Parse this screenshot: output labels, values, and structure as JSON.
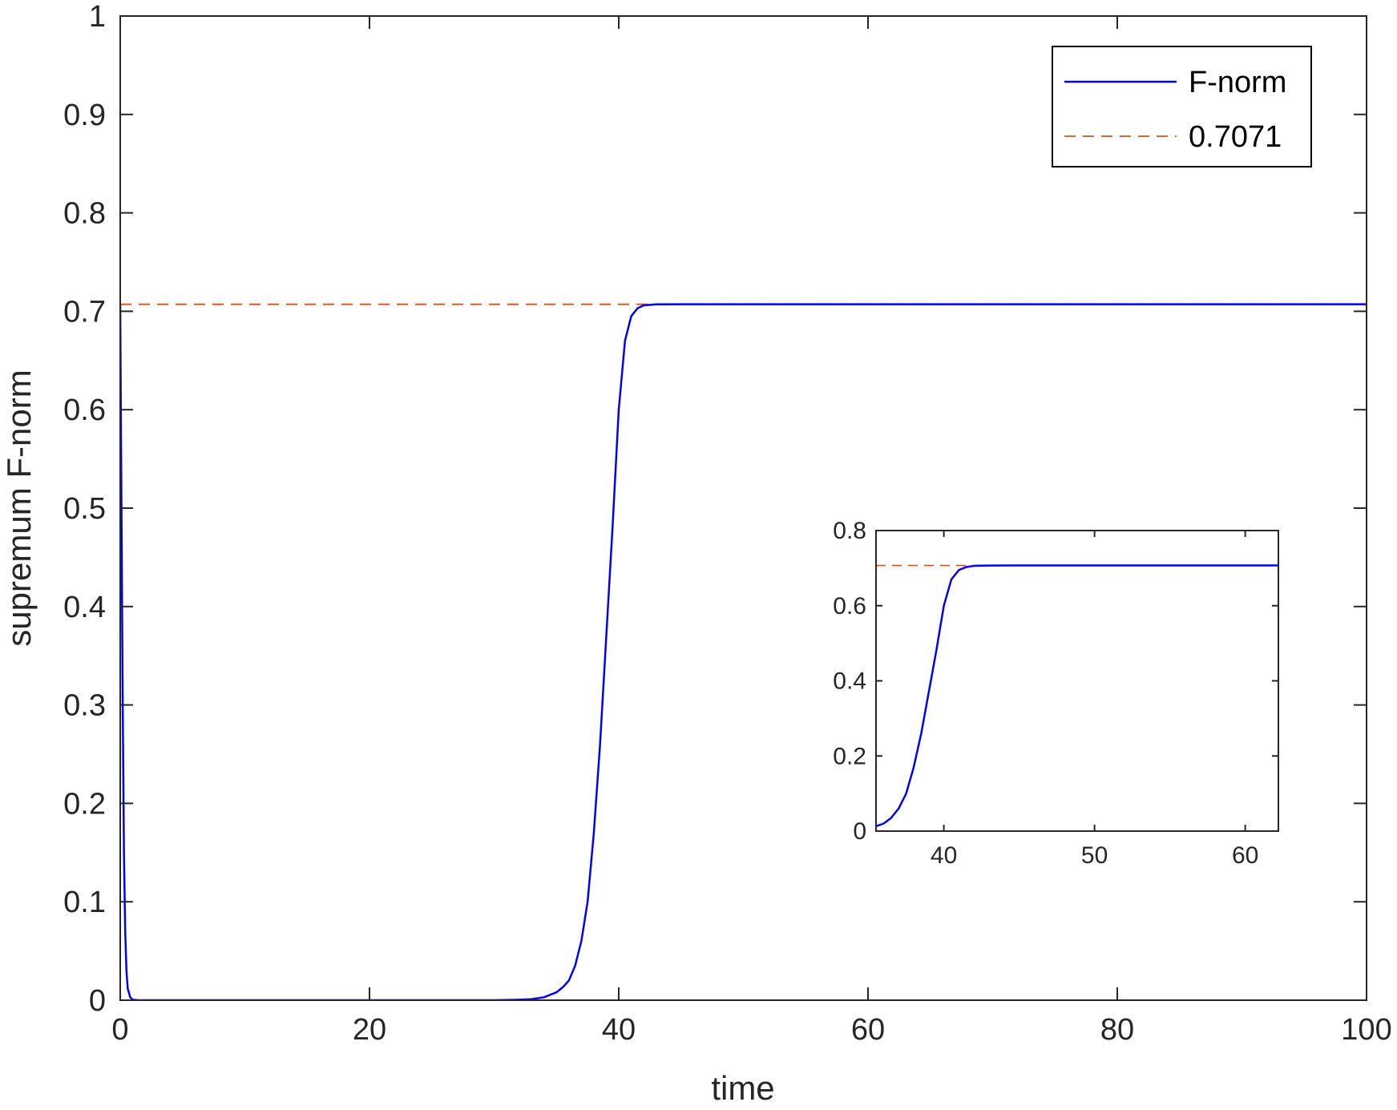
{
  "chart_data": [
    {
      "type": "line",
      "role": "main",
      "title": "",
      "xlabel": "time",
      "ylabel": "supremum F-norm",
      "xlim": [
        0,
        100
      ],
      "ylim": [
        0,
        1
      ],
      "xticks": [
        0,
        20,
        40,
        60,
        80,
        100
      ],
      "xtick_labels": [
        "0",
        "20",
        "40",
        "60",
        "80",
        "100"
      ],
      "yticks": [
        0,
        0.1,
        0.2,
        0.3,
        0.4,
        0.5,
        0.6,
        0.7,
        0.8,
        0.9,
        1
      ],
      "ytick_labels": [
        "0",
        "0.1",
        "0.2",
        "0.3",
        "0.4",
        "0.5",
        "0.6",
        "0.7",
        "0.8",
        "0.9",
        "1"
      ],
      "grid": false,
      "legend_position": "top-right",
      "series": [
        {
          "name": "F-norm",
          "color": "#0000ff",
          "style": "solid",
          "x": [
            0,
            0.1,
            0.2,
            0.3,
            0.4,
            0.5,
            0.6,
            0.8,
            1.0,
            1.5,
            5,
            10,
            20,
            30,
            32,
            33,
            34,
            35,
            35.5,
            36,
            36.5,
            37,
            37.5,
            38,
            38.5,
            39,
            39.5,
            40,
            40.5,
            41,
            41.5,
            42,
            43,
            45,
            50,
            60,
            80,
            100
          ],
          "y": [
            0.7071,
            0.5,
            0.3,
            0.15,
            0.07,
            0.03,
            0.012,
            0.003,
            0.0005,
            0,
            0,
            0,
            0,
            0,
            0.0005,
            0.001,
            0.003,
            0.008,
            0.013,
            0.02,
            0.035,
            0.06,
            0.1,
            0.17,
            0.26,
            0.37,
            0.48,
            0.6,
            0.67,
            0.695,
            0.703,
            0.706,
            0.707,
            0.7071,
            0.7071,
            0.7071,
            0.7071,
            0.7071
          ]
        },
        {
          "name": "0.7071",
          "color": "#d95319",
          "style": "dashed",
          "x": [
            0,
            100
          ],
          "y": [
            0.7071,
            0.7071
          ]
        }
      ]
    },
    {
      "type": "line",
      "role": "inset",
      "xlim": [
        35.5,
        62.2
      ],
      "ylim": [
        0,
        0.8
      ],
      "xticks": [
        40,
        50,
        60
      ],
      "xtick_labels": [
        "40",
        "50",
        "60"
      ],
      "yticks": [
        0,
        0.2,
        0.4,
        0.6,
        0.8
      ],
      "ytick_labels": [
        "0",
        "0.2",
        "0.4",
        "0.6",
        "0.8"
      ],
      "series": [
        {
          "color": "#0000ff",
          "style": "solid",
          "x": [
            35.5,
            36,
            36.5,
            37,
            37.5,
            38,
            38.5,
            39,
            39.5,
            40,
            40.5,
            41,
            41.5,
            42,
            43,
            45,
            50,
            55,
            60,
            62.2
          ],
          "y": [
            0.013,
            0.02,
            0.035,
            0.06,
            0.1,
            0.17,
            0.26,
            0.37,
            0.48,
            0.6,
            0.67,
            0.695,
            0.703,
            0.706,
            0.707,
            0.7071,
            0.7071,
            0.7071,
            0.7071,
            0.7071
          ]
        },
        {
          "color": "#d95319",
          "style": "dashed",
          "x": [
            35.5,
            62.2
          ],
          "y": [
            0.7071,
            0.7071
          ]
        }
      ]
    }
  ]
}
